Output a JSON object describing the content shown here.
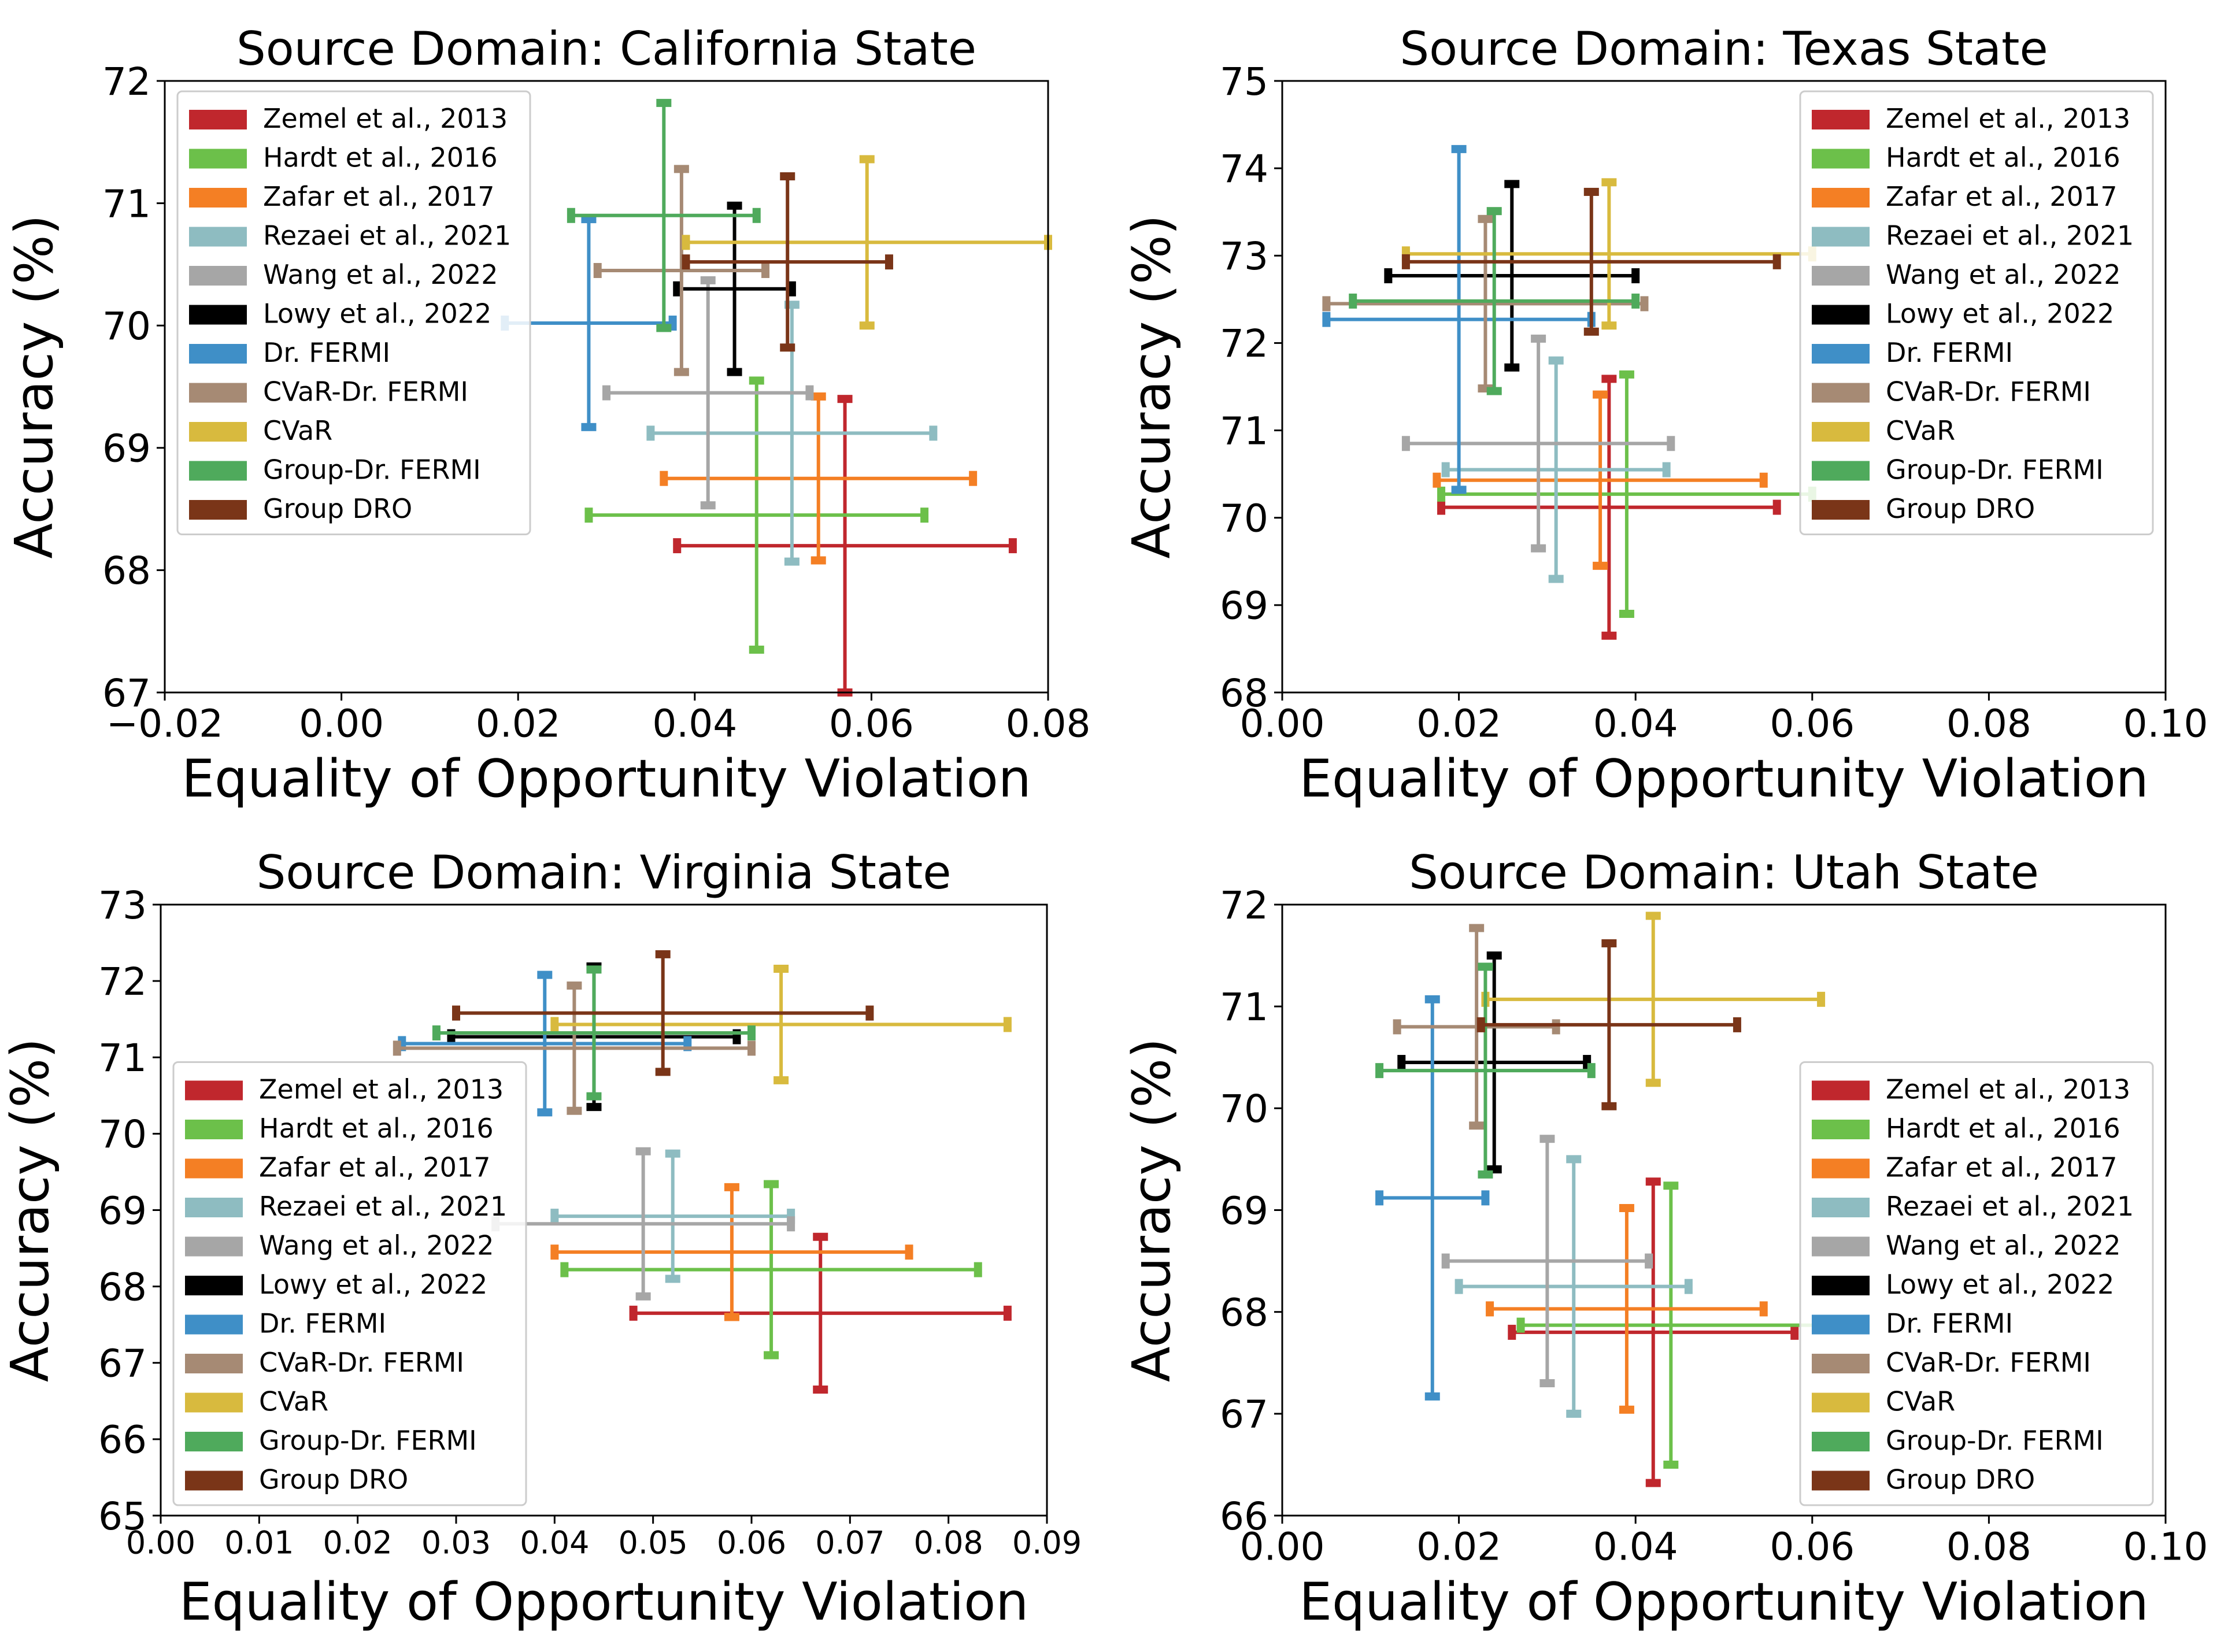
{
  "series_styles": [
    {
      "name": "Zemel et al., 2013",
      "color": "#c0272d"
    },
    {
      "name": "Hardt et al., 2016",
      "color": "#6cc04a"
    },
    {
      "name": "Zafar et al., 2017",
      "color": "#f47f24"
    },
    {
      "name": "Rezaei et al., 2021",
      "color": "#8ebcc1"
    },
    {
      "name": "Wang et al., 2022",
      "color": "#a6a6a6"
    },
    {
      "name": "Lowy et al., 2022",
      "color": "#000000"
    },
    {
      "name": "Dr. FERMI",
      "color": "#3f8fc7"
    },
    {
      "name": "CVaR-Dr. FERMI",
      "color": "#a68a74"
    },
    {
      "name": "CVaR",
      "color": "#d8ba3e"
    },
    {
      "name": "Group-Dr. FERMI",
      "color": "#4faa5c"
    },
    {
      "name": "Group DRO",
      "color": "#7a3518"
    }
  ],
  "chart_data": [
    {
      "type": "errorbar",
      "title": "Source Domain: California State",
      "xlabel": "Equality of Opportunity Violation",
      "ylabel": "Accuracy (%)",
      "xlim": [
        -0.02,
        0.08
      ],
      "ylim": [
        67,
        72
      ],
      "xticks": [
        "−0.02",
        "0.00",
        "0.02",
        "0.04",
        "0.06",
        "0.08"
      ],
      "xtick_values": [
        -0.02,
        0.0,
        0.02,
        0.04,
        0.06,
        0.08
      ],
      "yticks": [
        "67",
        "68",
        "69",
        "70",
        "71",
        "72"
      ],
      "ytick_values": [
        67,
        68,
        69,
        70,
        71,
        72
      ],
      "legend_position": "upper-left",
      "series": [
        {
          "name": "Zemel et al., 2013",
          "x": 0.057,
          "xerr": 0.019,
          "y": 68.2,
          "yerr": 1.2
        },
        {
          "name": "Hardt et al., 2016",
          "x": 0.047,
          "xerr": 0.019,
          "y": 68.45,
          "yerr": 1.1
        },
        {
          "name": "Zafar et al., 2017",
          "x": 0.054,
          "xerr": 0.0175,
          "y": 68.75,
          "yerr": 0.67
        },
        {
          "name": "Rezaei et al., 2021",
          "x": 0.051,
          "xerr": 0.016,
          "y": 69.12,
          "yerr": 1.05
        },
        {
          "name": "Wang et al., 2022",
          "x": 0.0415,
          "xerr": 0.0115,
          "y": 69.45,
          "yerr": 0.92
        },
        {
          "name": "Lowy et al., 2022",
          "x": 0.0445,
          "xerr": 0.0065,
          "y": 70.3,
          "yerr": 0.68
        },
        {
          "name": "Dr. FERMI",
          "x": 0.028,
          "xerr": 0.0095,
          "y": 70.02,
          "yerr": 0.85
        },
        {
          "name": "CVaR-Dr. FERMI",
          "x": 0.0385,
          "xerr": 0.0095,
          "y": 70.45,
          "yerr": 0.83
        },
        {
          "name": "CVaR",
          "x": 0.0595,
          "xerr": 0.0205,
          "y": 70.68,
          "yerr": 0.68
        },
        {
          "name": "Group-Dr. FERMI",
          "x": 0.0365,
          "xerr": 0.0105,
          "y": 70.9,
          "yerr": 0.92
        },
        {
          "name": "Group DRO",
          "x": 0.0505,
          "xerr": 0.0115,
          "y": 70.52,
          "yerr": 0.7
        }
      ]
    },
    {
      "type": "errorbar",
      "title": "Source Domain: Texas State",
      "xlabel": "Equality of Opportunity Violation",
      "ylabel": "Accuracy (%)",
      "xlim": [
        0.0,
        0.1
      ],
      "ylim": [
        68,
        75
      ],
      "xticks": [
        "0.00",
        "0.02",
        "0.04",
        "0.06",
        "0.08",
        "0.10"
      ],
      "xtick_values": [
        0.0,
        0.02,
        0.04,
        0.06,
        0.08,
        0.1
      ],
      "yticks": [
        "68",
        "69",
        "70",
        "71",
        "72",
        "73",
        "74",
        "75"
      ],
      "ytick_values": [
        68,
        69,
        70,
        71,
        72,
        73,
        74,
        75
      ],
      "legend_position": "upper-right",
      "series": [
        {
          "name": "Zemel et al., 2013",
          "x": 0.037,
          "xerr": 0.019,
          "y": 70.12,
          "yerr": 1.47
        },
        {
          "name": "Hardt et al., 2016",
          "x": 0.039,
          "xerr": 0.021,
          "y": 70.27,
          "yerr": 1.37
        },
        {
          "name": "Zafar et al., 2017",
          "x": 0.036,
          "xerr": 0.0185,
          "y": 70.43,
          "yerr": 0.98
        },
        {
          "name": "Rezaei et al., 2021",
          "x": 0.031,
          "xerr": 0.0125,
          "y": 70.55,
          "yerr": 1.25
        },
        {
          "name": "Wang et al., 2022",
          "x": 0.029,
          "xerr": 0.015,
          "y": 70.85,
          "yerr": 1.2
        },
        {
          "name": "Lowy et al., 2022",
          "x": 0.026,
          "xerr": 0.014,
          "y": 72.77,
          "yerr": 1.05
        },
        {
          "name": "Dr. FERMI",
          "x": 0.02,
          "xerr": 0.015,
          "y": 72.27,
          "yerr": 1.95
        },
        {
          "name": "CVaR-Dr. FERMI",
          "x": 0.023,
          "xerr": 0.018,
          "y": 72.45,
          "yerr": 0.97
        },
        {
          "name": "CVaR",
          "x": 0.037,
          "xerr": 0.023,
          "y": 73.02,
          "yerr": 0.82
        },
        {
          "name": "Group-Dr. FERMI",
          "x": 0.024,
          "xerr": 0.016,
          "y": 72.48,
          "yerr": 1.03
        },
        {
          "name": "Group DRO",
          "x": 0.035,
          "xerr": 0.021,
          "y": 72.93,
          "yerr": 0.8
        }
      ]
    },
    {
      "type": "errorbar",
      "title": "Source Domain: Virginia State",
      "xlabel": "Equality of Opportunity Violation",
      "ylabel": "Accuracy (%)",
      "xlim": [
        0.0,
        0.09
      ],
      "ylim": [
        65,
        73
      ],
      "xticks": [
        "0.00",
        "0.01",
        "0.02",
        "0.03",
        "0.04",
        "0.05",
        "0.06",
        "0.07",
        "0.08",
        "0.09"
      ],
      "xtick_values": [
        0.0,
        0.01,
        0.02,
        0.03,
        0.04,
        0.05,
        0.06,
        0.07,
        0.08,
        0.09
      ],
      "yticks": [
        "65",
        "66",
        "67",
        "68",
        "69",
        "70",
        "71",
        "72",
        "73"
      ],
      "ytick_values": [
        65,
        66,
        67,
        68,
        69,
        70,
        71,
        72,
        73
      ],
      "legend_position": "lower-left",
      "series": [
        {
          "name": "Zemel et al., 2013",
          "x": 0.067,
          "xerr": 0.019,
          "y": 67.65,
          "yerr": 1.0
        },
        {
          "name": "Hardt et al., 2016",
          "x": 0.062,
          "xerr": 0.021,
          "y": 68.22,
          "yerr": 1.12
        },
        {
          "name": "Zafar et al., 2017",
          "x": 0.058,
          "xerr": 0.018,
          "y": 68.45,
          "yerr": 0.85
        },
        {
          "name": "Rezaei et al., 2021",
          "x": 0.052,
          "xerr": 0.012,
          "y": 68.92,
          "yerr": 0.82
        },
        {
          "name": "Wang et al., 2022",
          "x": 0.049,
          "xerr": 0.015,
          "y": 68.82,
          "yerr": 0.95
        },
        {
          "name": "Lowy et al., 2022",
          "x": 0.044,
          "xerr": 0.0145,
          "y": 71.27,
          "yerr": 0.92
        },
        {
          "name": "Dr. FERMI",
          "x": 0.039,
          "xerr": 0.0145,
          "y": 71.18,
          "yerr": 0.9
        },
        {
          "name": "CVaR-Dr. FERMI",
          "x": 0.042,
          "xerr": 0.018,
          "y": 71.12,
          "yerr": 0.82
        },
        {
          "name": "CVaR",
          "x": 0.063,
          "xerr": 0.023,
          "y": 71.43,
          "yerr": 0.73
        },
        {
          "name": "Group-Dr. FERMI",
          "x": 0.044,
          "xerr": 0.016,
          "y": 71.32,
          "yerr": 0.83
        },
        {
          "name": "Group DRO",
          "x": 0.051,
          "xerr": 0.021,
          "y": 71.58,
          "yerr": 0.77
        }
      ]
    },
    {
      "type": "errorbar",
      "title": "Source Domain: Utah State",
      "xlabel": "Equality of Opportunity Violation",
      "ylabel": "Accuracy (%)",
      "xlim": [
        0.0,
        0.1
      ],
      "ylim": [
        66,
        72
      ],
      "xticks": [
        "0.00",
        "0.02",
        "0.04",
        "0.06",
        "0.08",
        "0.10"
      ],
      "xtick_values": [
        0.0,
        0.02,
        0.04,
        0.06,
        0.08,
        0.1
      ],
      "yticks": [
        "66",
        "67",
        "68",
        "69",
        "70",
        "71",
        "72"
      ],
      "ytick_values": [
        66,
        67,
        68,
        69,
        70,
        71,
        72
      ],
      "legend_position": "lower-right",
      "series": [
        {
          "name": "Zemel et al., 2013",
          "x": 0.042,
          "xerr": 0.016,
          "y": 67.8,
          "yerr": 1.48
        },
        {
          "name": "Hardt et al., 2016",
          "x": 0.044,
          "xerr": 0.017,
          "y": 67.87,
          "yerr": 1.37
        },
        {
          "name": "Zafar et al., 2017",
          "x": 0.039,
          "xerr": 0.0155,
          "y": 68.03,
          "yerr": 0.99
        },
        {
          "name": "Rezaei et al., 2021",
          "x": 0.033,
          "xerr": 0.013,
          "y": 68.25,
          "yerr": 1.25
        },
        {
          "name": "Wang et al., 2022",
          "x": 0.03,
          "xerr": 0.0115,
          "y": 68.5,
          "yerr": 1.2
        },
        {
          "name": "Lowy et al., 2022",
          "x": 0.024,
          "xerr": 0.0105,
          "y": 70.45,
          "yerr": 1.05
        },
        {
          "name": "Dr. FERMI",
          "x": 0.017,
          "xerr": 0.006,
          "y": 69.12,
          "yerr": 1.95
        },
        {
          "name": "CVaR-Dr. FERMI",
          "x": 0.022,
          "xerr": 0.009,
          "y": 70.8,
          "yerr": 0.97
        },
        {
          "name": "CVaR",
          "x": 0.042,
          "xerr": 0.019,
          "y": 71.07,
          "yerr": 0.82
        },
        {
          "name": "Group-Dr. FERMI",
          "x": 0.023,
          "xerr": 0.012,
          "y": 70.37,
          "yerr": 1.02
        },
        {
          "name": "Group DRO",
          "x": 0.037,
          "xerr": 0.0145,
          "y": 70.82,
          "yerr": 0.8
        }
      ]
    }
  ]
}
